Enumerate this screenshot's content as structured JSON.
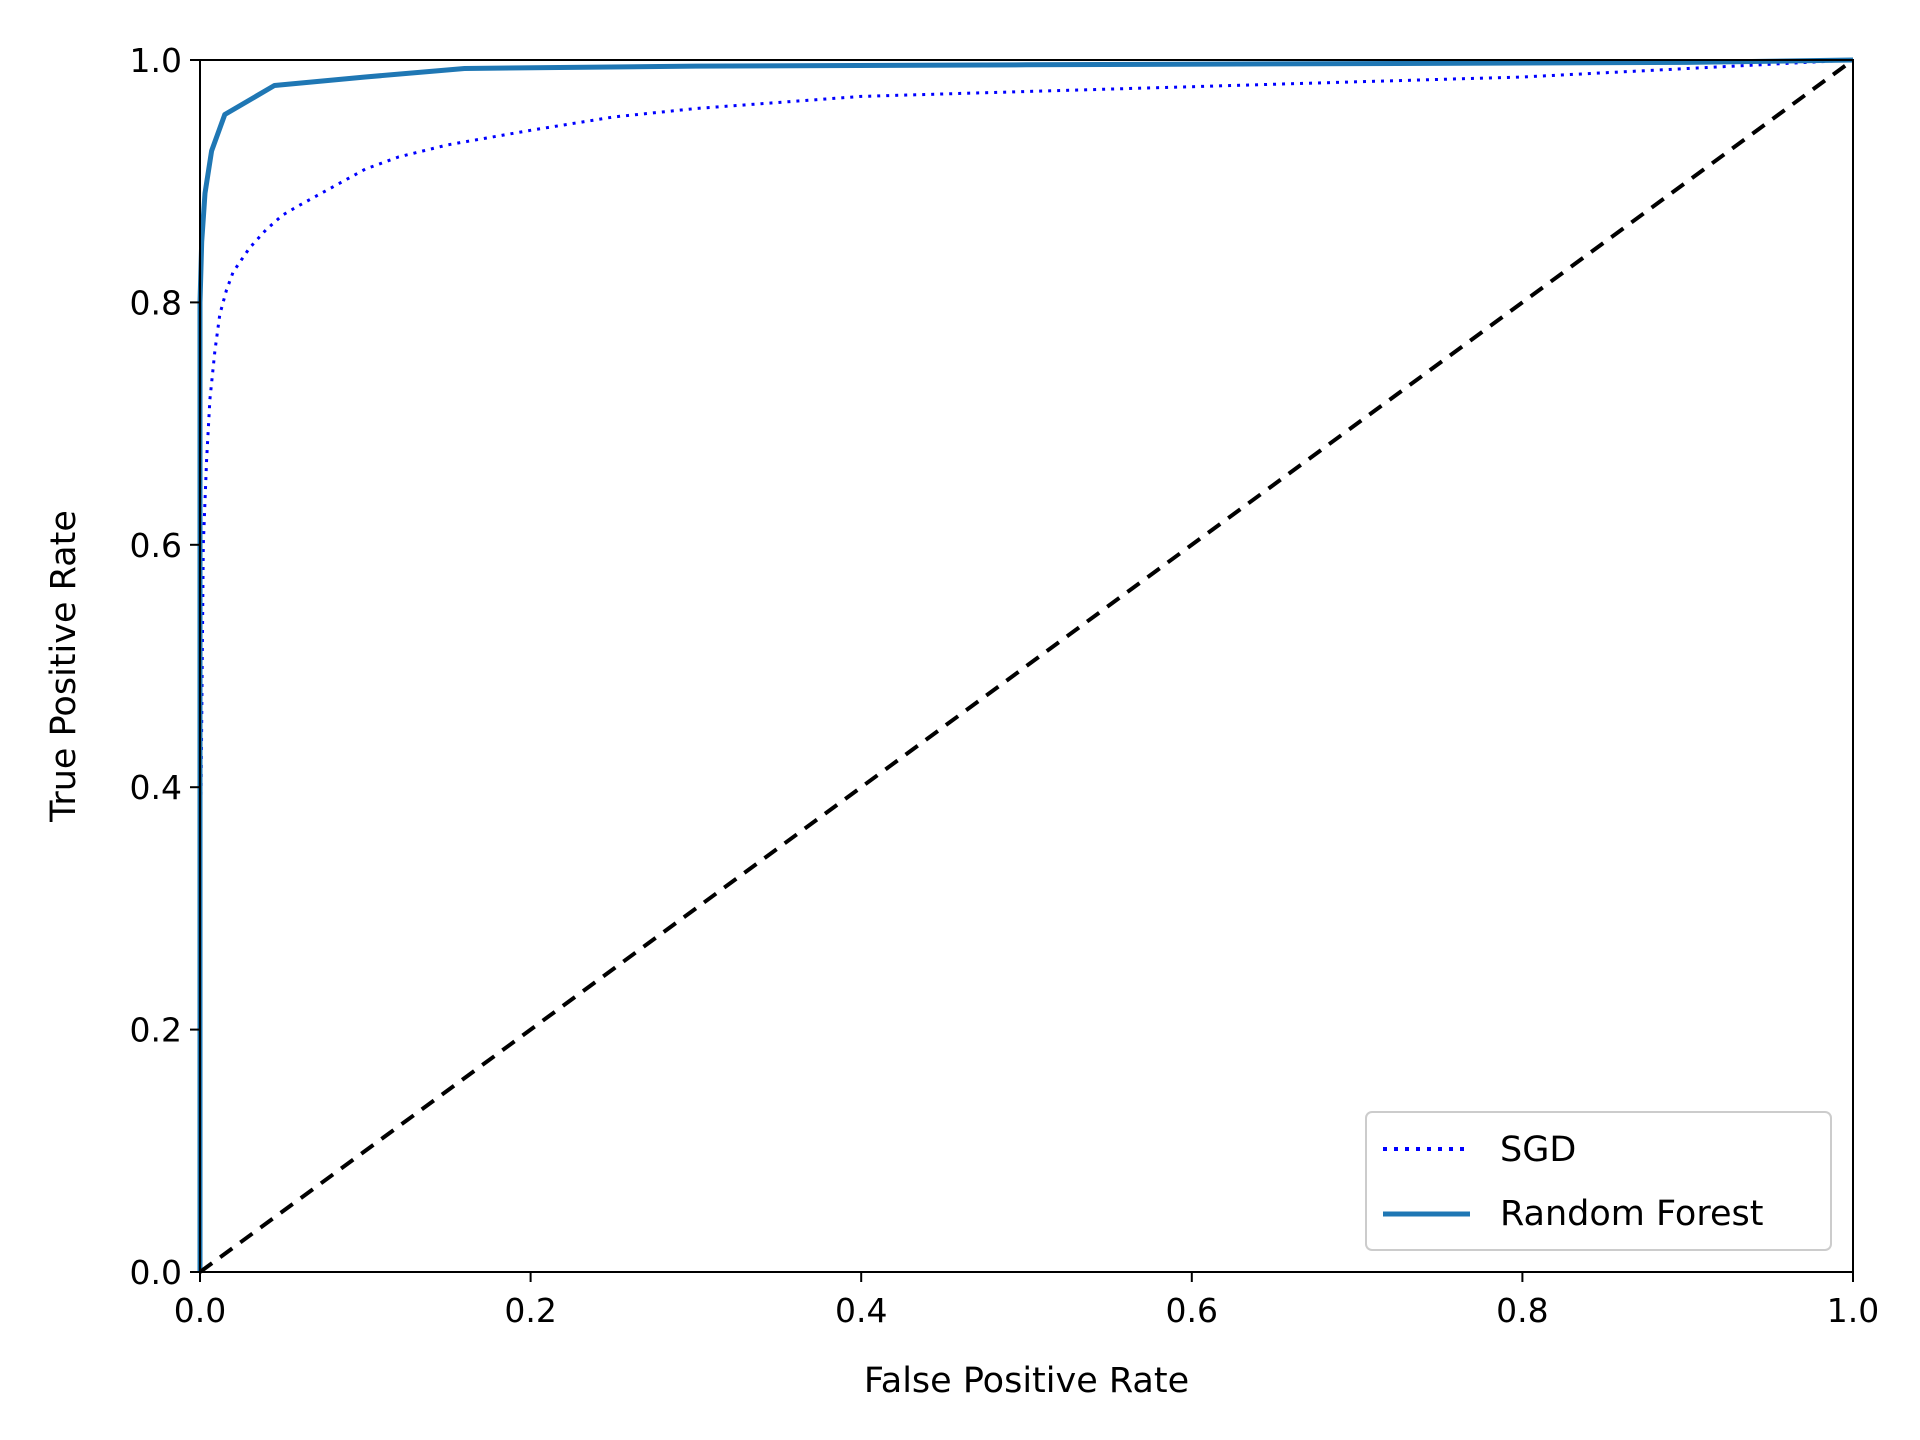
{
  "chart_data": {
    "type": "line",
    "title": "",
    "xlabel": "False Positive Rate",
    "ylabel": "True Positive Rate",
    "xlim": [
      0.0,
      1.0
    ],
    "ylim": [
      0.0,
      1.0
    ],
    "xticks": [
      "0.0",
      "0.2",
      "0.4",
      "0.6",
      "0.8",
      "1.0"
    ],
    "yticks": [
      "0.0",
      "0.2",
      "0.4",
      "0.6",
      "0.8",
      "1.0"
    ],
    "grid": false,
    "legend_position": "lower right",
    "series": [
      {
        "name": "SGD",
        "style": "dotted",
        "color": "#0000ff",
        "x": [
          0.0,
          0.0,
          0.002,
          0.004,
          0.006,
          0.009,
          0.012,
          0.016,
          0.02,
          0.025,
          0.03,
          0.04,
          0.05,
          0.06,
          0.08,
          0.1,
          0.12,
          0.15,
          0.2,
          0.25,
          0.3,
          0.4,
          0.5,
          0.6,
          0.7,
          0.8,
          0.9,
          1.0
        ],
        "y": [
          0.0,
          0.3,
          0.6,
          0.67,
          0.72,
          0.76,
          0.79,
          0.81,
          0.825,
          0.835,
          0.845,
          0.86,
          0.872,
          0.88,
          0.895,
          0.91,
          0.92,
          0.93,
          0.942,
          0.953,
          0.96,
          0.97,
          0.974,
          0.978,
          0.982,
          0.986,
          0.993,
          1.0
        ]
      },
      {
        "name": "Random Forest",
        "style": "solid",
        "color": "#1f77b4",
        "x": [
          0.0,
          0.0,
          0.001,
          0.003,
          0.007,
          0.015,
          0.045,
          0.1,
          0.16,
          0.3,
          0.5,
          0.7,
          0.9,
          1.0
        ],
        "y": [
          0.0,
          0.8,
          0.85,
          0.89,
          0.925,
          0.955,
          0.979,
          0.986,
          0.993,
          0.995,
          0.996,
          0.997,
          0.998,
          1.0
        ]
      },
      {
        "name": "",
        "style": "dashed",
        "color": "#000000",
        "x": [
          0.0,
          1.0
        ],
        "y": [
          0.0,
          1.0
        ]
      }
    ]
  }
}
